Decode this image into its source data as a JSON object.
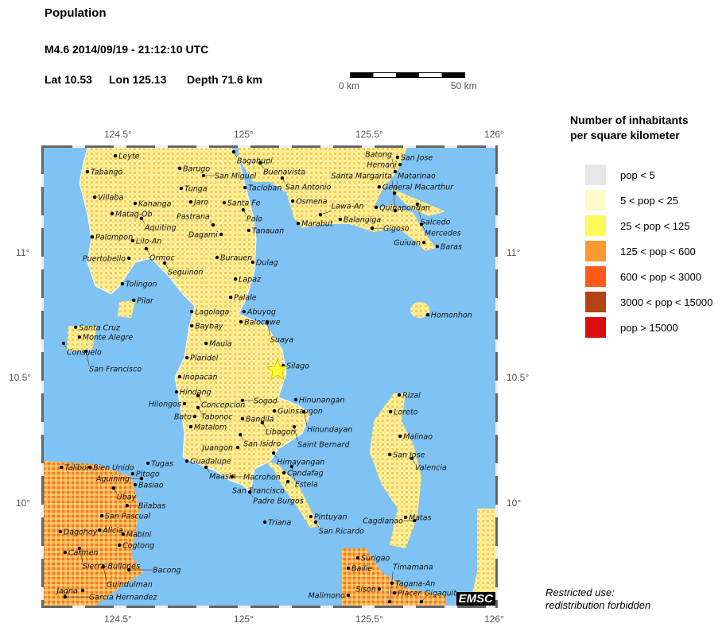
{
  "header": {
    "title": "Population",
    "event": "M4.6  2014/09/19 - 21:12:10 UTC",
    "lat": "Lat 10.53",
    "lon": "Lon 125.13",
    "depth": "Depth  71.6 km"
  },
  "scalebar": {
    "start": "0 km",
    "end": "50 km"
  },
  "axes": {
    "lon_ticks": [
      "124.5°",
      "125°",
      "125.5°",
      "126°"
    ],
    "lat_ticks": [
      "11°",
      "10.5°",
      "10°"
    ],
    "extent": {
      "lon": [
        124.2,
        126.0
      ],
      "lat": [
        9.59,
        11.42
      ]
    }
  },
  "epicenter": {
    "lat": 10.53,
    "lon": 125.13,
    "color": "#ffff33",
    "icon": "star-icon"
  },
  "legend": {
    "title_line1": "Number of inhabitants",
    "title_line2": "per square kilometer",
    "items": [
      {
        "label": "pop < 5",
        "color": "#e6e6e6"
      },
      {
        "label": "5 < pop < 25",
        "color": "#fdfac9"
      },
      {
        "label": "25 < pop < 125",
        "color": "#fdfa5a"
      },
      {
        "label": "125 < pop < 600",
        "color": "#fd9a33"
      },
      {
        "label": "600 < pop < 3000",
        "color": "#fd5a1a"
      },
      {
        "label": "3000 < pop < 15000",
        "color": "#b34312"
      },
      {
        "label": "pop > 15000",
        "color": "#d90f0f"
      }
    ]
  },
  "colors": {
    "sea": "#7fc3f4",
    "land": "#fdf3a0"
  },
  "watermark": "EMSC",
  "notice": {
    "line1": "Restricted use:",
    "line2": "redistribution forbidden"
  },
  "cities": [
    {
      "name": "Leyte",
      "lon": 124.485,
      "lat": 11.387
    },
    {
      "name": "Tabango",
      "lon": 124.374,
      "lat": 11.324
    },
    {
      "name": "Barugo",
      "lon": 124.741,
      "lat": 11.337
    },
    {
      "name": "San Miguel",
      "lon": 124.836,
      "lat": 11.308
    },
    {
      "name": "Tunga",
      "lon": 124.747,
      "lat": 11.257
    },
    {
      "name": "Villaba",
      "lon": 124.403,
      "lat": 11.222
    },
    {
      "name": "Kananga",
      "lon": 124.564,
      "lat": 11.197
    },
    {
      "name": "Jaro",
      "lon": 124.785,
      "lat": 11.203
    },
    {
      "name": "Santa Fe",
      "lon": 124.918,
      "lat": 11.2
    },
    {
      "name": "Matag-Ob",
      "lon": 124.472,
      "lat": 11.156
    },
    {
      "name": "Aquiting",
      "lon": 124.589,
      "lat": 11.137
    },
    {
      "name": "Tacloban",
      "lon": 125.001,
      "lat": 11.26
    },
    {
      "name": "Palo",
      "lon": 124.994,
      "lat": 11.171
    },
    {
      "name": "Tanauan",
      "lon": 125.016,
      "lat": 11.089
    },
    {
      "name": "Pastrana",
      "lon": 124.874,
      "lat": 11.111
    },
    {
      "name": "Dagami",
      "lon": 124.906,
      "lat": 11.073
    },
    {
      "name": "Palompon",
      "lon": 124.393,
      "lat": 11.063
    },
    {
      "name": "Lilo-An",
      "lon": 124.554,
      "lat": 11.048
    },
    {
      "name": "Ormoc",
      "lon": 124.608,
      "lat": 11.016
    },
    {
      "name": "Puertobello",
      "lon": 124.539,
      "lat": 10.978
    },
    {
      "name": "Seguinon",
      "lon": 124.681,
      "lat": 10.959
    },
    {
      "name": "Burauen",
      "lon": 124.89,
      "lat": 10.981
    },
    {
      "name": "Dulag",
      "lon": 125.032,
      "lat": 10.962
    },
    {
      "name": "Tolingon",
      "lon": 124.513,
      "lat": 10.876
    },
    {
      "name": "Lapaz",
      "lon": 124.963,
      "lat": 10.895
    },
    {
      "name": "Palale",
      "lon": 124.944,
      "lat": 10.822
    },
    {
      "name": "Pilar",
      "lon": 124.558,
      "lat": 10.81
    },
    {
      "name": "Bagahupi",
      "lon": 124.956,
      "lat": 11.403
    },
    {
      "name": "Buenavista",
      "lon": 125.061,
      "lat": 11.359
    },
    {
      "name": "San Antonio",
      "lon": 125.149,
      "lat": 11.298
    },
    {
      "name": "Osmena",
      "lon": 125.191,
      "lat": 11.206
    },
    {
      "name": "Marabut",
      "lon": 125.213,
      "lat": 11.117
    },
    {
      "name": "Lawa-An",
      "lon": 125.301,
      "lat": 11.152
    },
    {
      "name": "Balangiga",
      "lon": 125.38,
      "lat": 11.133
    },
    {
      "name": "Gigoso",
      "lon": 125.507,
      "lat": 11.098
    },
    {
      "name": "Quinapondan",
      "lon": 125.523,
      "lat": 11.181
    },
    {
      "name": "General Macarthur",
      "lon": 125.535,
      "lat": 11.263
    },
    {
      "name": "Matarinao",
      "lon": 125.596,
      "lat": 11.238
    },
    {
      "name": "Salcedo",
      "lon": 125.687,
      "lat": 11.194
    },
    {
      "name": "Santa Margarita",
      "lon": 125.599,
      "lat": 11.168
    },
    {
      "name": "Mercedes",
      "lon": 125.703,
      "lat": 11.114
    },
    {
      "name": "Guiuan",
      "lon": 125.713,
      "lat": 11.041
    },
    {
      "name": "Baras",
      "lon": 125.766,
      "lat": 11.025
    },
    {
      "name": "San Jose",
      "lon": 125.608,
      "lat": 11.381
    },
    {
      "name": "Hernani",
      "lon": 125.618,
      "lat": 11.352
    },
    {
      "name": "Batong",
      "lon": 125.599,
      "lat": 11.324
    },
    {
      "name": "Homonhon",
      "lon": 125.728,
      "lat": 10.752
    },
    {
      "name": "Lagolaga",
      "lon": 124.789,
      "lat": 10.765
    },
    {
      "name": "Abuyog",
      "lon": 124.997,
      "lat": 10.765
    },
    {
      "name": "Balocawe",
      "lon": 124.985,
      "lat": 10.724
    },
    {
      "name": "Suaya",
      "lon": 125.089,
      "lat": 10.724
    },
    {
      "name": "Baybay",
      "lon": 124.789,
      "lat": 10.708
    },
    {
      "name": "Maula",
      "lon": 124.846,
      "lat": 10.638
    },
    {
      "name": "Plaridel",
      "lon": 124.77,
      "lat": 10.581
    },
    {
      "name": "Inopacan",
      "lon": 124.741,
      "lat": 10.505
    },
    {
      "name": "Silago",
      "lon": 125.153,
      "lat": 10.549
    },
    {
      "name": "Hindang",
      "lon": 124.728,
      "lat": 10.444
    },
    {
      "name": "Concepcion",
      "lon": 124.814,
      "lat": 10.429
    },
    {
      "name": "Hilongos",
      "lon": 124.76,
      "lat": 10.397
    },
    {
      "name": "Tabonoc",
      "lon": 124.814,
      "lat": 10.381
    },
    {
      "name": "Bato",
      "lon": 124.801,
      "lat": 10.346
    },
    {
      "name": "Matalom",
      "lon": 124.785,
      "lat": 10.305
    },
    {
      "name": "Sogod",
      "lon": 124.991,
      "lat": 10.41
    },
    {
      "name": "Hinunangan",
      "lon": 125.203,
      "lat": 10.413
    },
    {
      "name": "Guinsaugon",
      "lon": 125.118,
      "lat": 10.368
    },
    {
      "name": "Hinundayan",
      "lon": 125.235,
      "lat": 10.365
    },
    {
      "name": "Bandila",
      "lon": 124.991,
      "lat": 10.337
    },
    {
      "name": "Libagon",
      "lon": 125.07,
      "lat": 10.321
    },
    {
      "name": "Saint Bernard",
      "lon": 125.197,
      "lat": 10.305
    },
    {
      "name": "San Isidro",
      "lon": 124.982,
      "lat": 10.273
    },
    {
      "name": "Juangon",
      "lon": 124.972,
      "lat": 10.222
    },
    {
      "name": "Himayangan",
      "lon": 125.115,
      "lat": 10.2
    },
    {
      "name": "Santa Cruz",
      "lon": 124.327,
      "lat": 10.702
    },
    {
      "name": "Monte Alegre",
      "lon": 124.342,
      "lat": 10.663
    },
    {
      "name": "Consuelo",
      "lon": 124.279,
      "lat": 10.638
    },
    {
      "name": "San Francisco",
      "lon": 124.368,
      "lat": 10.606
    },
    {
      "name": "Guadalupe",
      "lon": 124.77,
      "lat": 10.168
    },
    {
      "name": "Maasin",
      "lon": 124.846,
      "lat": 10.143
    },
    {
      "name": "Macrohon",
      "lon": 124.95,
      "lat": 10.105
    },
    {
      "name": "Candafag",
      "lon": 125.156,
      "lat": 10.121
    },
    {
      "name": "Estela",
      "lon": 125.187,
      "lat": 10.146
    },
    {
      "name": "San Francisco",
      "lon": 125.172,
      "lat": 10.086
    },
    {
      "name": "Padre Burgos",
      "lon": 125.02,
      "lat": 10.044
    },
    {
      "name": "Triana",
      "lon": 125.08,
      "lat": 9.924
    },
    {
      "name": "Pintuyan",
      "lon": 125.263,
      "lat": 9.946
    },
    {
      "name": "San Ricardo",
      "lon": 125.282,
      "lat": 9.924
    },
    {
      "name": "Talibon",
      "lon": 124.27,
      "lat": 10.143
    },
    {
      "name": "Bien Unido",
      "lon": 124.384,
      "lat": 10.143
    },
    {
      "name": "Tugas",
      "lon": 124.615,
      "lat": 10.159
    },
    {
      "name": "Pitogo",
      "lon": 124.554,
      "lat": 10.117
    },
    {
      "name": "Aguining",
      "lon": 124.589,
      "lat": 10.098
    },
    {
      "name": "Basiao",
      "lon": 124.564,
      "lat": 10.073
    },
    {
      "name": "Ubay",
      "lon": 124.478,
      "lat": 10.06
    },
    {
      "name": "Bilabas",
      "lon": 124.532,
      "lat": 9.99
    },
    {
      "name": "San Pascual",
      "lon": 124.431,
      "lat": 9.949
    },
    {
      "name": "Dagohoy",
      "lon": 124.266,
      "lat": 9.886
    },
    {
      "name": "Alicia",
      "lon": 124.422,
      "lat": 9.892
    },
    {
      "name": "Mabini",
      "lon": 124.516,
      "lat": 9.876
    },
    {
      "name": "Cogtong",
      "lon": 124.501,
      "lat": 9.832
    },
    {
      "name": "Carmen",
      "lon": 124.285,
      "lat": 9.803
    },
    {
      "name": "Sierra-Bullones",
      "lon": 124.342,
      "lat": 9.819
    },
    {
      "name": "Guindulman",
      "lon": 124.437,
      "lat": 9.746
    },
    {
      "name": "Bacong",
      "lon": 124.539,
      "lat": 9.733
    },
    {
      "name": "Jagna",
      "lon": 124.355,
      "lat": 9.651
    },
    {
      "name": "Garcia Hernandez",
      "lon": 124.285,
      "lat": 9.625
    },
    {
      "name": "Rizal",
      "lon": 125.615,
      "lat": 10.432
    },
    {
      "name": "Loreto",
      "lon": 125.58,
      "lat": 10.365
    },
    {
      "name": "Malinao",
      "lon": 125.618,
      "lat": 10.267
    },
    {
      "name": "San Jose",
      "lon": 125.577,
      "lat": 10.194
    },
    {
      "name": "Valencia",
      "lon": 125.665,
      "lat": 10.178
    },
    {
      "name": "Matas",
      "lon": 125.64,
      "lat": 9.943
    },
    {
      "name": "Cagdianao",
      "lon": 125.675,
      "lat": 9.93
    },
    {
      "name": "Surigao",
      "lon": 125.45,
      "lat": 9.781
    },
    {
      "name": "Bailie",
      "lon": 125.412,
      "lat": 9.74
    },
    {
      "name": "Tagana-An",
      "lon": 125.586,
      "lat": 9.68
    },
    {
      "name": "Sison",
      "lon": 125.535,
      "lat": 9.657
    },
    {
      "name": "Placer",
      "lon": 125.596,
      "lat": 9.641
    },
    {
      "name": "Malimono",
      "lon": 125.412,
      "lat": 9.632
    },
    {
      "name": "Timamana",
      "lon": 125.577,
      "lat": 9.606
    },
    {
      "name": "Gigaquit",
      "lon": 125.703,
      "lat": 9.606
    }
  ]
}
